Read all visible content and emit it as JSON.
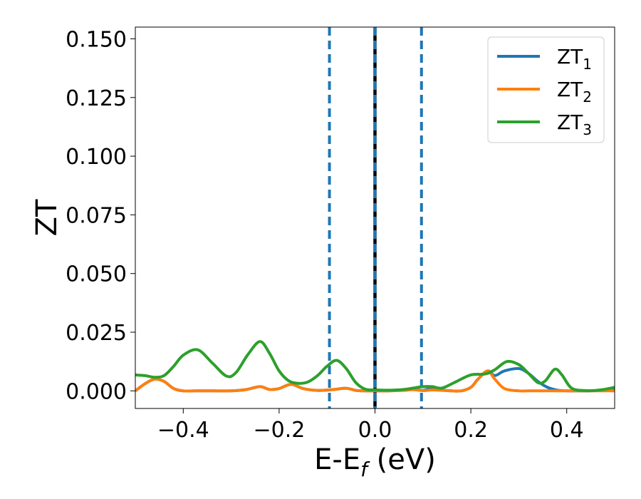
{
  "chart_data": {
    "type": "line",
    "xlabel": {
      "main": "E-E",
      "sub": "f",
      "unit": " (eV)"
    },
    "ylabel": "ZT",
    "xlim": [
      -0.5,
      0.5
    ],
    "ylim": [
      -0.0075,
      0.155
    ],
    "xticks": [
      {
        "v": -0.4,
        "label": "−0.4"
      },
      {
        "v": -0.2,
        "label": "−0.2"
      },
      {
        "v": 0.0,
        "label": "0.0"
      },
      {
        "v": 0.2,
        "label": "0.2"
      },
      {
        "v": 0.4,
        "label": "0.4"
      }
    ],
    "yticks": [
      {
        "v": 0.0,
        "label": "0.000"
      },
      {
        "v": 0.025,
        "label": "0.025"
      },
      {
        "v": 0.05,
        "label": "0.050"
      },
      {
        "v": 0.075,
        "label": "0.075"
      },
      {
        "v": 0.1,
        "label": "0.100"
      },
      {
        "v": 0.125,
        "label": "0.125"
      },
      {
        "v": 0.15,
        "label": "0.150"
      }
    ],
    "grid": false,
    "legend_position": "top-right",
    "vlines": [
      {
        "x": -0.095,
        "style": "dashed",
        "color": "#1f77b4"
      },
      {
        "x": 0.0,
        "style": "solid",
        "color": "#000000"
      },
      {
        "x": 0.0,
        "style": "dashed",
        "color": "#1f77b4"
      },
      {
        "x": 0.097,
        "style": "dashed",
        "color": "#1f77b4"
      }
    ],
    "series": [
      {
        "name": "ZT",
        "sub": "1",
        "color": "#1f77b4",
        "x": [
          -0.5,
          -0.48,
          -0.46,
          -0.44,
          -0.42,
          -0.4,
          -0.37,
          -0.34,
          -0.3,
          -0.27,
          -0.24,
          -0.22,
          -0.2,
          -0.175,
          -0.15,
          -0.12,
          -0.09,
          -0.06,
          -0.04,
          -0.02,
          0.0,
          0.03,
          0.06,
          0.08,
          0.1,
          0.12,
          0.14,
          0.16,
          0.18,
          0.2,
          0.215,
          0.235,
          0.25,
          0.27,
          0.3,
          0.32,
          0.34,
          0.36,
          0.38,
          0.4,
          0.42,
          0.45,
          0.47,
          0.49,
          0.5
        ],
        "y": [
          0.0,
          0.003,
          0.005,
          0.004,
          0.001,
          0.0,
          0.0,
          0.0,
          0.0,
          0.0005,
          0.0018,
          0.0006,
          0.001,
          0.0028,
          0.001,
          0.0002,
          0.0005,
          0.0011,
          0.0002,
          0.0,
          0.0,
          0.0,
          0.0004,
          0.0008,
          0.0002,
          0.0012,
          0.0004,
          0.0,
          0.0,
          0.0015,
          0.005,
          0.0085,
          0.0065,
          0.0085,
          0.0095,
          0.0075,
          0.004,
          0.0015,
          0.0003,
          0.0,
          0.0,
          0.0,
          0.0002,
          0.0007,
          0.0009
        ]
      },
      {
        "name": "ZT",
        "sub": "2",
        "color": "#ff7f0e",
        "x": [
          -0.5,
          -0.48,
          -0.46,
          -0.44,
          -0.42,
          -0.4,
          -0.37,
          -0.34,
          -0.3,
          -0.27,
          -0.24,
          -0.22,
          -0.2,
          -0.175,
          -0.15,
          -0.12,
          -0.09,
          -0.06,
          -0.04,
          -0.02,
          0.0,
          0.03,
          0.06,
          0.08,
          0.1,
          0.12,
          0.14,
          0.16,
          0.18,
          0.2,
          0.215,
          0.235,
          0.25,
          0.27,
          0.3,
          0.32,
          0.34,
          0.36,
          0.38,
          0.4,
          0.42,
          0.45,
          0.47,
          0.49,
          0.5
        ],
        "y": [
          0.0,
          0.003,
          0.005,
          0.004,
          0.001,
          0.0,
          0.0,
          0.0,
          0.0,
          0.0005,
          0.0018,
          0.0006,
          0.001,
          0.0028,
          0.001,
          0.0002,
          0.0005,
          0.0011,
          0.0002,
          0.0,
          0.0,
          0.0,
          0.0002,
          0.0005,
          0.0001,
          0.0004,
          0.0002,
          0.0,
          0.0,
          0.0015,
          0.005,
          0.0085,
          0.005,
          0.001,
          0.0,
          0.0,
          0.0,
          0.0,
          0.0,
          0.0,
          0.0,
          0.0,
          0.0,
          0.0,
          0.0
        ]
      },
      {
        "name": "ZT",
        "sub": "3",
        "color": "#2ca02c",
        "x": [
          -0.5,
          -0.48,
          -0.46,
          -0.44,
          -0.42,
          -0.4,
          -0.37,
          -0.34,
          -0.31,
          -0.29,
          -0.265,
          -0.24,
          -0.22,
          -0.2,
          -0.18,
          -0.16,
          -0.14,
          -0.12,
          -0.1,
          -0.08,
          -0.06,
          -0.04,
          -0.02,
          0.0,
          0.03,
          0.06,
          0.08,
          0.1,
          0.12,
          0.14,
          0.17,
          0.2,
          0.23,
          0.25,
          0.275,
          0.3,
          0.32,
          0.34,
          0.355,
          0.375,
          0.39,
          0.41,
          0.44,
          0.47,
          0.5
        ],
        "y": [
          0.0068,
          0.0065,
          0.0058,
          0.0065,
          0.0105,
          0.0152,
          0.0175,
          0.012,
          0.0063,
          0.0078,
          0.0155,
          0.021,
          0.016,
          0.0085,
          0.0043,
          0.0032,
          0.0038,
          0.0065,
          0.0105,
          0.013,
          0.0095,
          0.0035,
          0.0007,
          0.0004,
          0.0003,
          0.0006,
          0.0012,
          0.0018,
          0.0018,
          0.0012,
          0.004,
          0.0068,
          0.0072,
          0.009,
          0.0125,
          0.0112,
          0.0075,
          0.0035,
          0.0042,
          0.0092,
          0.0068,
          0.0012,
          0.0001,
          0.0004,
          0.0015
        ]
      }
    ]
  }
}
